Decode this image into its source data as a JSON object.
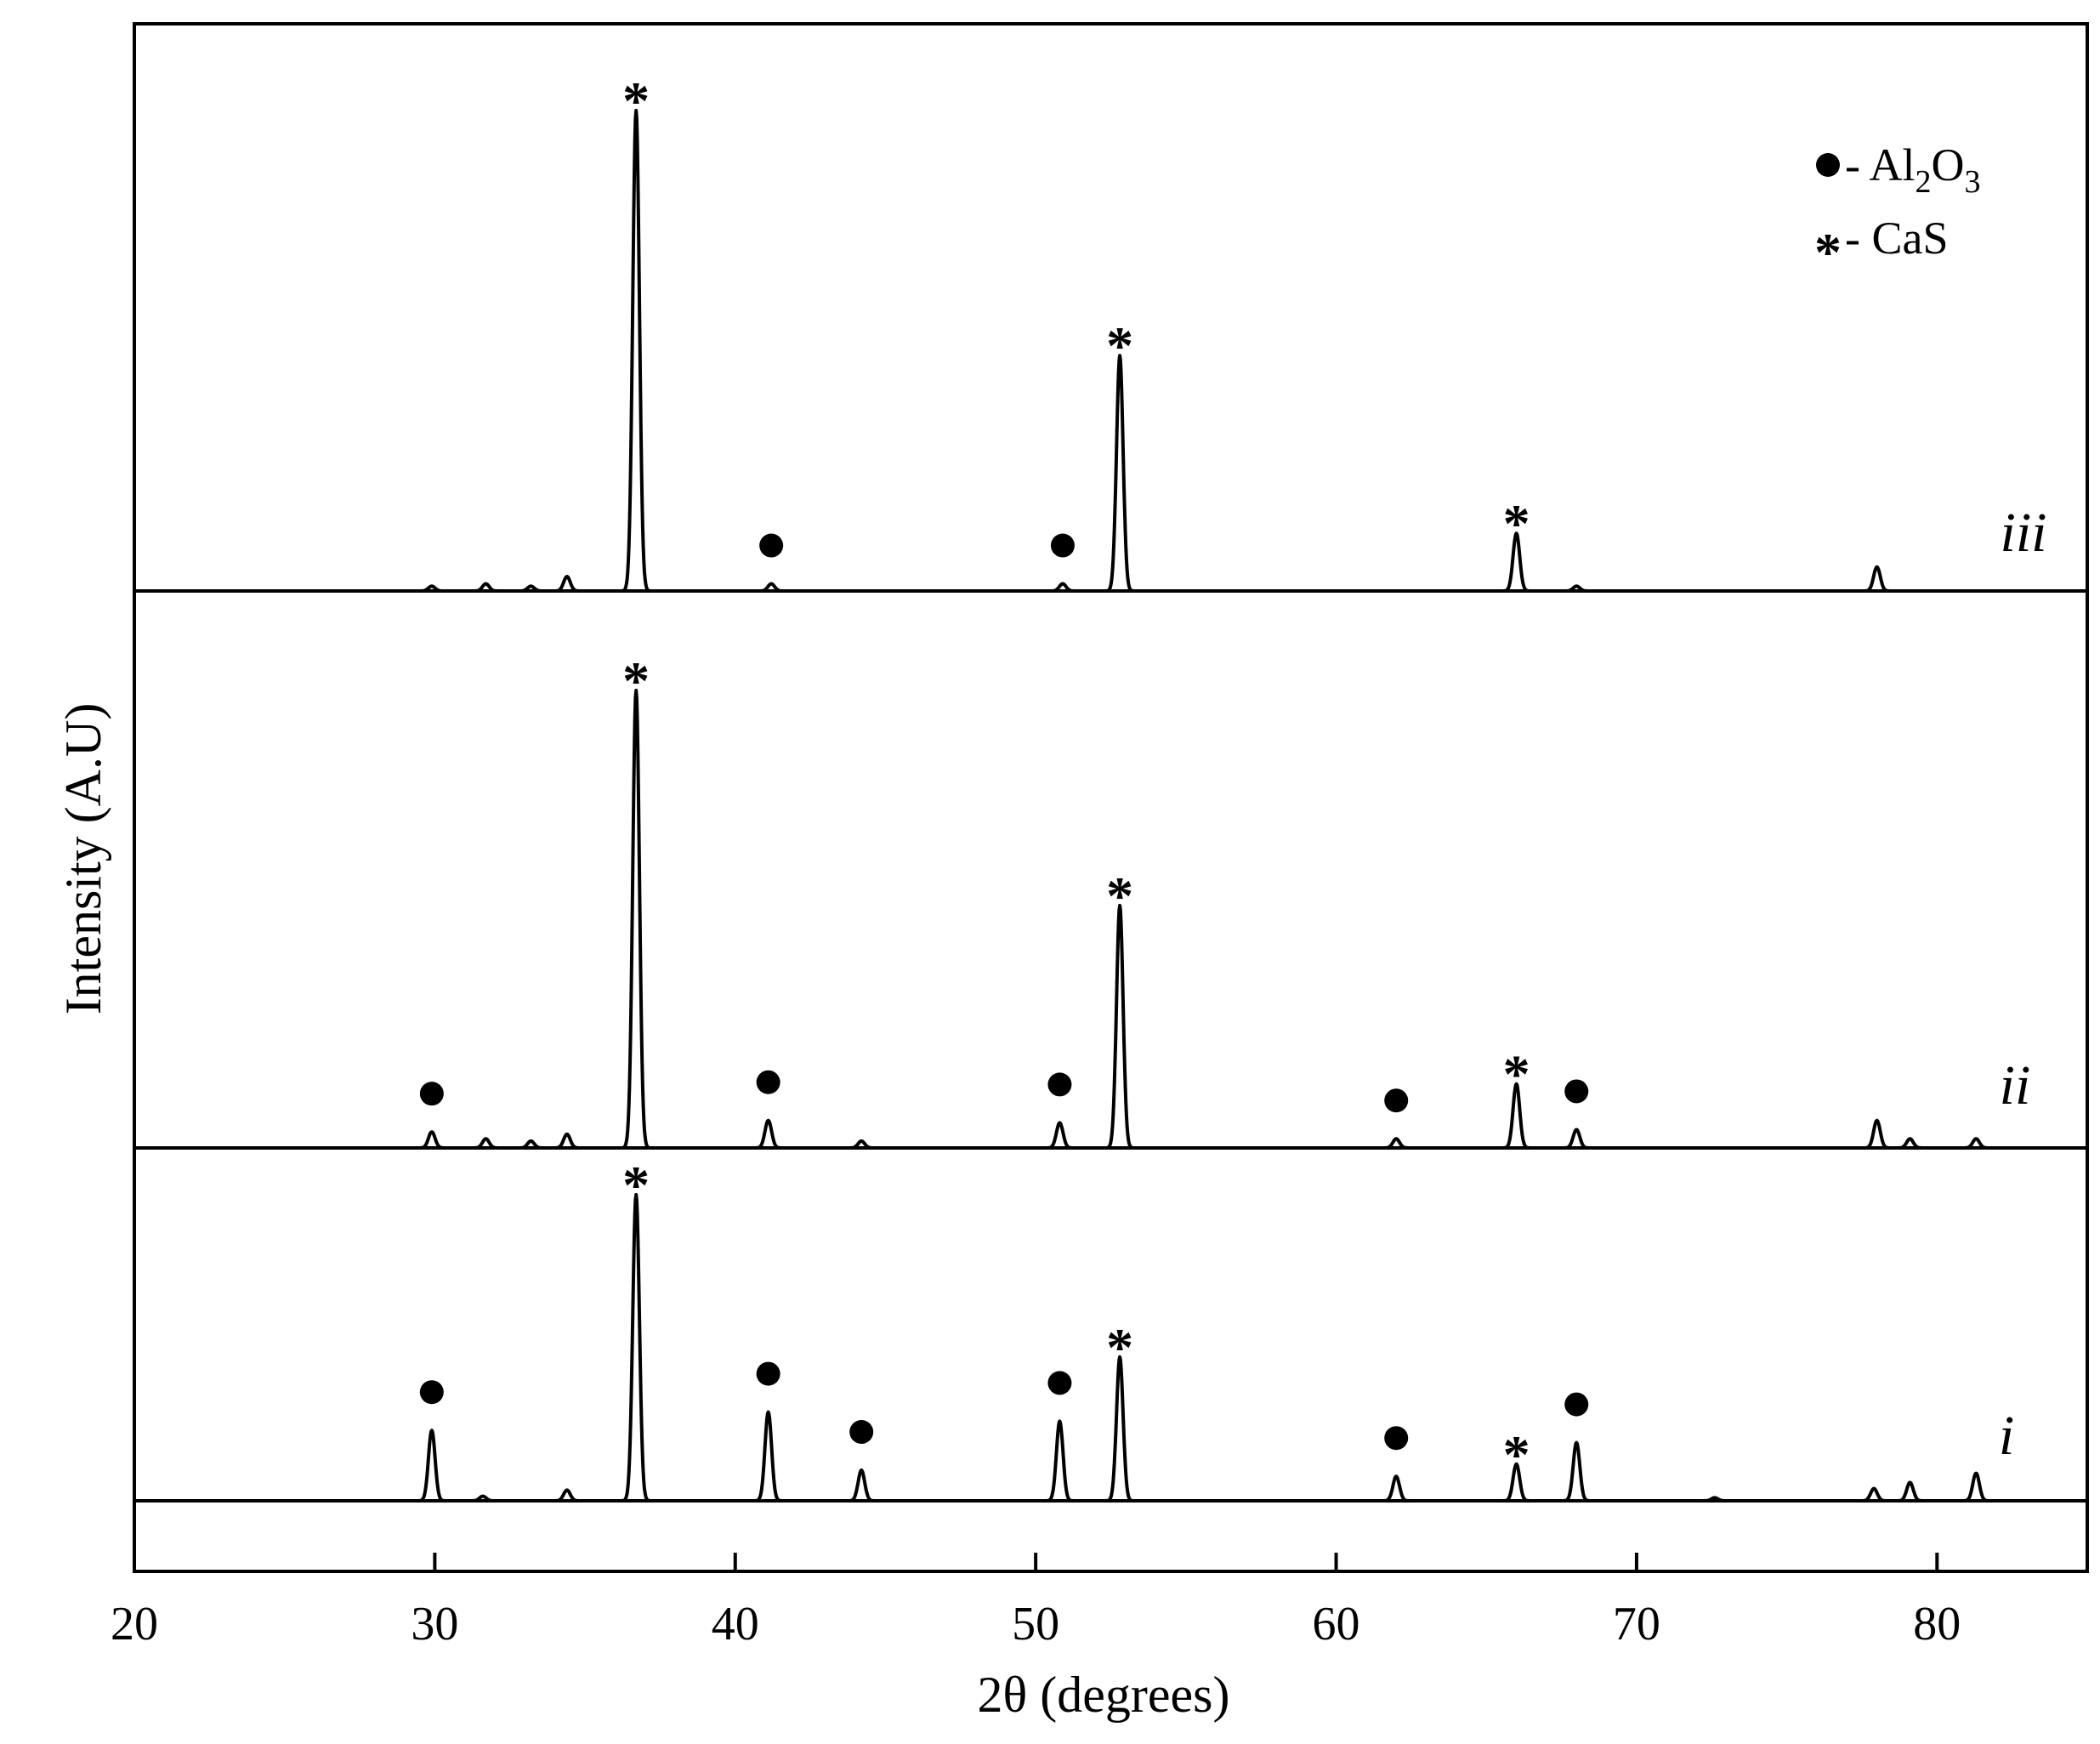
{
  "chart_data": {
    "type": "line",
    "title": "",
    "xlabel": "2θ (degrees)",
    "ylabel": "Intensity (A.U)",
    "xlim": [
      20,
      85
    ],
    "xticks": [
      20,
      30,
      40,
      50,
      60,
      70,
      80
    ],
    "xtick_labels": [
      "20",
      "30",
      "40",
      "50",
      "60",
      "70",
      "80"
    ],
    "grid": false,
    "legend_position": "top-right",
    "legend": [
      {
        "symbol": "dot",
        "text": "- Al",
        "sub1": "2",
        "mid": "O",
        "sub2": "3"
      },
      {
        "symbol": "star",
        "text": "- CaS"
      }
    ],
    "series": [
      {
        "name": "iii",
        "baseline": 0,
        "peaks": [
          {
            "x": 29.9,
            "h": 0.01
          },
          {
            "x": 31.7,
            "h": 0.015
          },
          {
            "x": 33.2,
            "h": 0.01
          },
          {
            "x": 34.4,
            "h": 0.03
          },
          {
            "x": 36.7,
            "h": 1.0,
            "mark": "star"
          },
          {
            "x": 41.2,
            "h": 0.015,
            "mark": "dot"
          },
          {
            "x": 50.9,
            "h": 0.015,
            "mark": "dot"
          },
          {
            "x": 52.8,
            "h": 0.49,
            "mark": "star"
          },
          {
            "x": 66.0,
            "h": 0.12,
            "mark": "star"
          },
          {
            "x": 68.0,
            "h": 0.01
          },
          {
            "x": 78.0,
            "h": 0.05
          }
        ]
      },
      {
        "name": "ii",
        "baseline": 0,
        "peaks": [
          {
            "x": 29.9,
            "h": 0.035,
            "mark": "dot"
          },
          {
            "x": 31.7,
            "h": 0.02
          },
          {
            "x": 33.2,
            "h": 0.015
          },
          {
            "x": 34.4,
            "h": 0.03
          },
          {
            "x": 36.7,
            "h": 1.0,
            "mark": "star"
          },
          {
            "x": 41.1,
            "h": 0.06,
            "mark": "dot"
          },
          {
            "x": 44.2,
            "h": 0.015
          },
          {
            "x": 50.8,
            "h": 0.055,
            "mark": "dot"
          },
          {
            "x": 52.8,
            "h": 0.53,
            "mark": "star"
          },
          {
            "x": 62.0,
            "h": 0.02,
            "mark": "dot"
          },
          {
            "x": 66.0,
            "h": 0.14,
            "mark": "star"
          },
          {
            "x": 68.0,
            "h": 0.04,
            "mark": "dot"
          },
          {
            "x": 78.0,
            "h": 0.06
          },
          {
            "x": 79.1,
            "h": 0.02
          },
          {
            "x": 81.3,
            "h": 0.02
          }
        ]
      },
      {
        "name": "i",
        "baseline": 0,
        "peaks": [
          {
            "x": 29.9,
            "h": 0.23,
            "mark": "dot"
          },
          {
            "x": 31.6,
            "h": 0.015
          },
          {
            "x": 34.4,
            "h": 0.035
          },
          {
            "x": 36.7,
            "h": 1.0,
            "mark": "star"
          },
          {
            "x": 41.1,
            "h": 0.29,
            "mark": "dot"
          },
          {
            "x": 44.2,
            "h": 0.1,
            "mark": "dot"
          },
          {
            "x": 50.8,
            "h": 0.26,
            "mark": "dot"
          },
          {
            "x": 52.8,
            "h": 0.47,
            "mark": "star"
          },
          {
            "x": 62.0,
            "h": 0.08,
            "mark": "dot"
          },
          {
            "x": 66.0,
            "h": 0.12,
            "mark": "star"
          },
          {
            "x": 68.0,
            "h": 0.19,
            "mark": "dot"
          },
          {
            "x": 72.6,
            "h": 0.01
          },
          {
            "x": 77.9,
            "h": 0.04
          },
          {
            "x": 79.1,
            "h": 0.06
          },
          {
            "x": 81.3,
            "h": 0.09
          }
        ]
      }
    ]
  }
}
